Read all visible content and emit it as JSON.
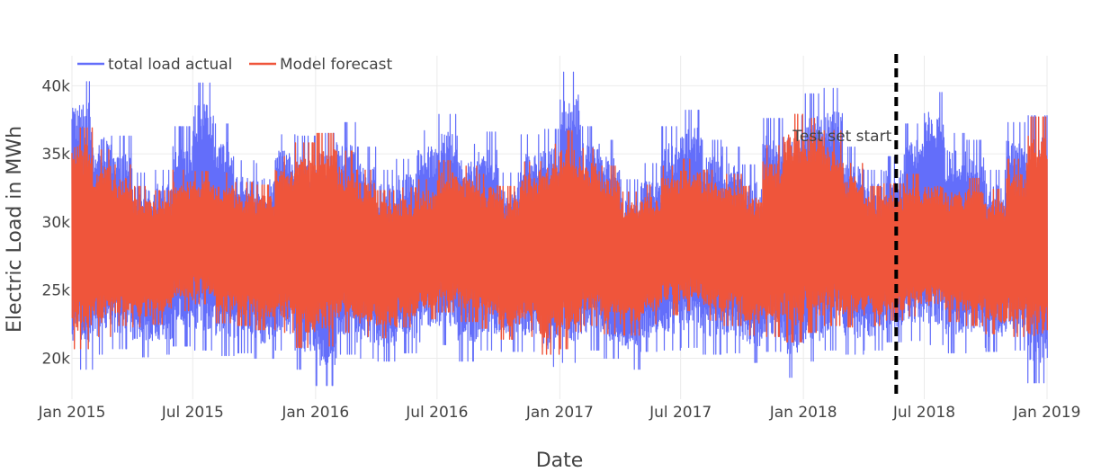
{
  "chart_data": {
    "type": "line",
    "title": "",
    "xlabel": "Date",
    "ylabel": "Electric Load in MWh",
    "x_range": [
      "2015-01-01",
      "2019-01-01"
    ],
    "ylim": [
      17000,
      42200
    ],
    "x_ticks": [
      {
        "date": "2015-01-01",
        "label": "Jan 2015"
      },
      {
        "date": "2015-07-01",
        "label": "Jul 2015"
      },
      {
        "date": "2016-01-01",
        "label": "Jan 2016"
      },
      {
        "date": "2016-07-01",
        "label": "Jul 2016"
      },
      {
        "date": "2017-01-01",
        "label": "Jan 2017"
      },
      {
        "date": "2017-07-01",
        "label": "Jul 2017"
      },
      {
        "date": "2018-01-01",
        "label": "Jan 2018"
      },
      {
        "date": "2018-07-01",
        "label": "Jul 2018"
      },
      {
        "date": "2019-01-01",
        "label": "Jan 2019"
      }
    ],
    "y_ticks": [
      {
        "value": 20000,
        "label": "20k"
      },
      {
        "value": 25000,
        "label": "25k"
      },
      {
        "value": 30000,
        "label": "30k"
      },
      {
        "value": 35000,
        "label": "35k"
      },
      {
        "value": 40000,
        "label": "40k"
      }
    ],
    "grid": true,
    "legend_placement": "top-left",
    "series": [
      {
        "name": "total load actual",
        "color": "#636efa",
        "dates": [
          "2015-01",
          "2015-02",
          "2015-03",
          "2015-04",
          "2015-05",
          "2015-06",
          "2015-07",
          "2015-08",
          "2015-09",
          "2015-10",
          "2015-11",
          "2015-12",
          "2016-01",
          "2016-02",
          "2016-03",
          "2016-04",
          "2016-05",
          "2016-06",
          "2016-07",
          "2016-08",
          "2016-09",
          "2016-10",
          "2016-11",
          "2016-12",
          "2017-01",
          "2017-02",
          "2017-03",
          "2017-04",
          "2017-05",
          "2017-06",
          "2017-07",
          "2017-08",
          "2017-09",
          "2017-10",
          "2017-11",
          "2017-12",
          "2018-01",
          "2018-02",
          "2018-03",
          "2018-04",
          "2018-05",
          "2018-06",
          "2018-07",
          "2018-08",
          "2018-09",
          "2018-10",
          "2018-11",
          "2018-12"
        ],
        "max": [
          40300,
          37500,
          36300,
          33600,
          33800,
          37000,
          40200,
          37200,
          34500,
          34300,
          36400,
          36300,
          36500,
          37300,
          35500,
          33800,
          34600,
          36700,
          37900,
          35700,
          36600,
          33600,
          36400,
          36800,
          41000,
          37000,
          36000,
          33100,
          34300,
          37000,
          38200,
          36000,
          35500,
          34200,
          37600,
          37800,
          39400,
          39800,
          35500,
          33800,
          34800,
          37200,
          39500,
          36500,
          36000,
          33800,
          37300,
          37800
        ],
        "min": [
          19200,
          20300,
          20700,
          20100,
          20300,
          20900,
          20600,
          20200,
          20400,
          20000,
          20600,
          19200,
          18000,
          20300,
          20000,
          19800,
          20400,
          21200,
          21000,
          19800,
          20600,
          20500,
          20500,
          19400,
          19700,
          20600,
          20000,
          19200,
          20500,
          20600,
          20800,
          20300,
          20400,
          19700,
          20500,
          18600,
          19800,
          20600,
          20300,
          20600,
          21200,
          21300,
          21000,
          20400,
          20800,
          20500,
          20600,
          18200
        ]
      },
      {
        "name": "Model forecast",
        "color": "#ef553b",
        "dates": [
          "2015-01",
          "2015-02",
          "2015-03",
          "2015-04",
          "2015-05",
          "2015-06",
          "2015-07",
          "2015-08",
          "2015-09",
          "2015-10",
          "2015-11",
          "2015-12",
          "2016-01",
          "2016-02",
          "2016-03",
          "2016-04",
          "2016-05",
          "2016-06",
          "2016-07",
          "2016-08",
          "2016-09",
          "2016-10",
          "2016-11",
          "2016-12",
          "2017-01",
          "2017-02",
          "2017-03",
          "2017-04",
          "2017-05",
          "2017-06",
          "2017-07",
          "2017-08",
          "2017-09",
          "2017-10",
          "2017-11",
          "2017-12",
          "2018-01",
          "2018-02",
          "2018-03",
          "2018-04",
          "2018-05",
          "2018-06",
          "2018-07",
          "2018-08",
          "2018-09",
          "2018-10",
          "2018-11",
          "2018-12"
        ],
        "max": [
          36900,
          35300,
          34200,
          32600,
          32300,
          33800,
          33700,
          33600,
          32900,
          32700,
          34800,
          35800,
          36500,
          35200,
          33800,
          32300,
          32500,
          33100,
          34500,
          34100,
          33500,
          32600,
          34400,
          35700,
          36700,
          35400,
          34100,
          32200,
          32700,
          34100,
          34600,
          33800,
          33500,
          32600,
          35600,
          37900,
          37600,
          36700,
          34300,
          32600,
          32800,
          33500,
          33500,
          33000,
          33200,
          32400,
          34600,
          37700
        ],
        "min": [
          20700,
          21600,
          22400,
          22300,
          22500,
          23500,
          24000,
          22600,
          22400,
          22100,
          21900,
          20800,
          20900,
          21900,
          21600,
          21500,
          22300,
          22900,
          23400,
          22700,
          22200,
          21400,
          21600,
          20300,
          20700,
          22400,
          21800,
          21700,
          22500,
          23200,
          23500,
          22800,
          22400,
          21700,
          21600,
          21200,
          21900,
          22400,
          22300,
          22400,
          22800,
          23100,
          23100,
          22700,
          22400,
          21800,
          21600,
          20300
        ]
      }
    ],
    "annotations": [
      {
        "text": "Test set start",
        "date": "2018-05-20",
        "line_style": "dashed",
        "line_color": "#000000"
      }
    ]
  }
}
